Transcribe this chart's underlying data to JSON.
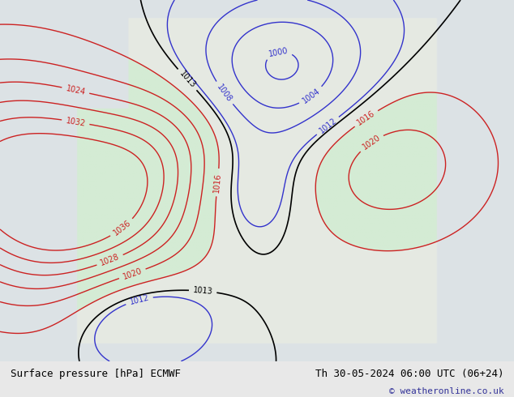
{
  "title_left": "Surface pressure [hPa] ECMWF",
  "title_right": "Th 30-05-2024 06:00 UTC (06+24)",
  "copyright": "© weatheronline.co.uk",
  "bg_color": "#e8e8e8",
  "map_bg_color": "#f0f0f0",
  "bottom_bar_color": "#d0d0d0",
  "label_color_blue": "#0000cc",
  "label_color_red": "#cc0000",
  "label_color_black": "#000000",
  "contour_interval": 4,
  "pressure_min": 996,
  "pressure_max": 1036,
  "fig_width": 6.34,
  "fig_height": 4.9,
  "dpi": 100
}
